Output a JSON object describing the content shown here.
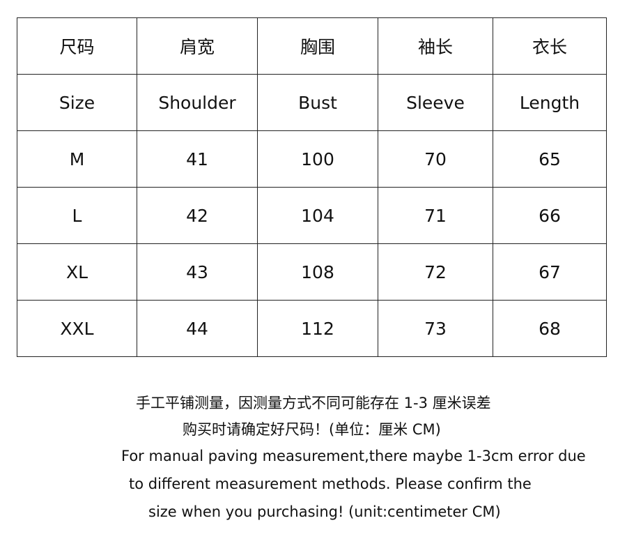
{
  "table": {
    "header_cn": [
      "尺码",
      "肩宽",
      "胸围",
      "袖长",
      "衣长"
    ],
    "header_en": [
      "Size",
      "Shoulder",
      "Bust",
      "Sleeve",
      "Length"
    ],
    "rows": [
      [
        "M",
        "41",
        "100",
        "70",
        "65"
      ],
      [
        "L",
        "42",
        "104",
        "71",
        "66"
      ],
      [
        "XL",
        "43",
        "108",
        "72",
        "67"
      ],
      [
        "XXL",
        "44",
        "112",
        "73",
        "68"
      ]
    ]
  },
  "notes": {
    "cn_line1": "手工平铺测量，因测量方式不同可能存在 1-3 厘米误差",
    "cn_line2": "购买时请确定好尺码！(单位：厘米 CM)",
    "en_line1": "For manual paving measurement,there maybe 1-3cm error due",
    "en_line2": "to different measurement methods. Please confirm the",
    "en_line3": "size when you purchasing! (unit:centimeter CM)"
  }
}
